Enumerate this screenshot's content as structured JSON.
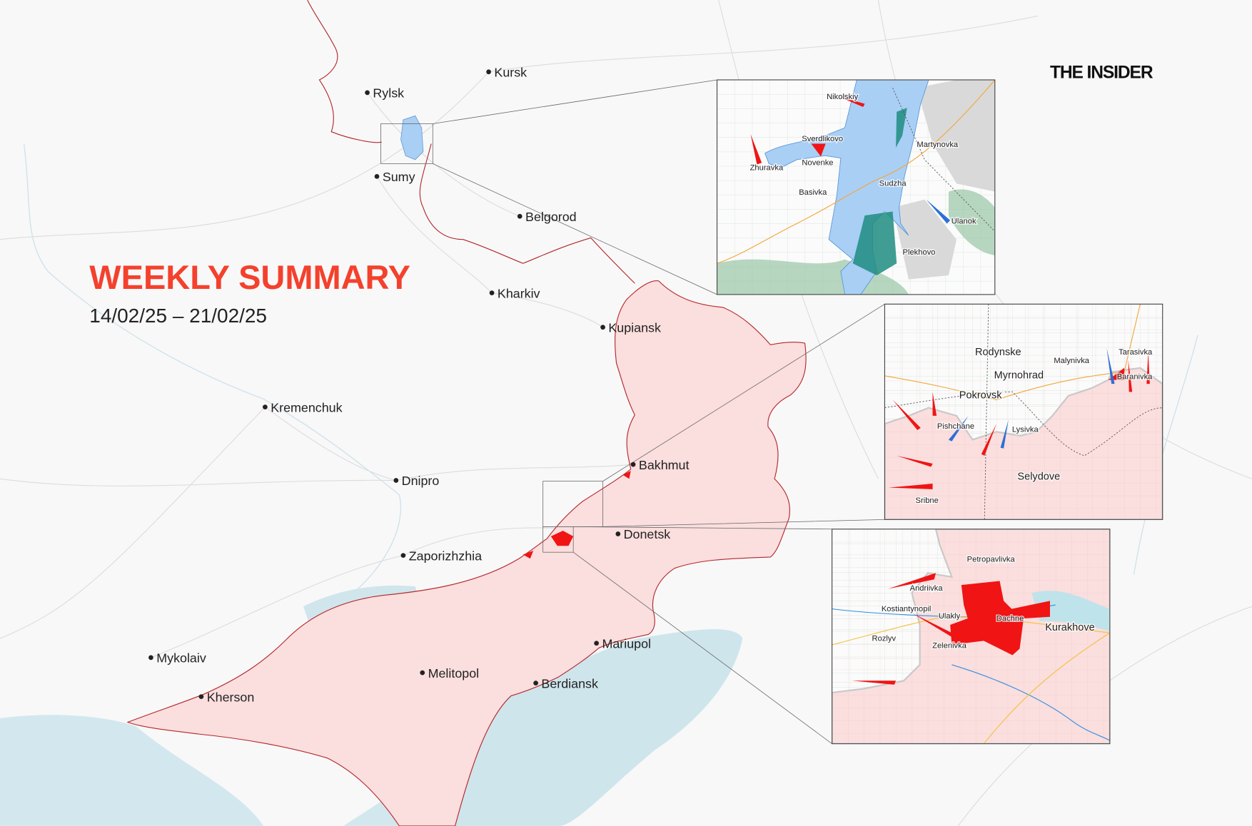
{
  "header": {
    "title": "WEEKLY SUMMARY",
    "dates": "14/02/25 – 21/02/25",
    "logo": "THE INSIDER"
  },
  "colors": {
    "title": "#f4412d",
    "occupied": "#fbdede",
    "frontline": "#b3262b",
    "ukrainian_advance": "#a9cff5",
    "russian_advance": "#f01414",
    "sea": "#cfe5ec"
  },
  "cities": [
    {
      "name": "Kursk"
    },
    {
      "name": "Rylsk"
    },
    {
      "name": "Sumy"
    },
    {
      "name": "Belgorod"
    },
    {
      "name": "Kharkiv"
    },
    {
      "name": "Kupiansk"
    },
    {
      "name": "Kremenchuk"
    },
    {
      "name": "Dnipro"
    },
    {
      "name": "Bakhmut"
    },
    {
      "name": "Donetsk"
    },
    {
      "name": "Zaporizhzhia"
    },
    {
      "name": "Mariupol"
    },
    {
      "name": "Melitopol"
    },
    {
      "name": "Berdiansk"
    },
    {
      "name": "Mykolaiv"
    },
    {
      "name": "Kherson"
    }
  ],
  "insets": [
    {
      "labels": [
        "Nikolskiy",
        "Sverdlikovo",
        "Zhuravka",
        "Novenke",
        "Basivka",
        "Martynovka",
        "Sudzha",
        "Ulanok",
        "Plekhovo"
      ]
    },
    {
      "labels": [
        "Rodynske",
        "Myrnohrad",
        "Pokrovsk",
        "Malynivka",
        "Tarasivka",
        "Baranivka",
        "Pishchane",
        "Lysivka",
        "Selydove",
        "Sribne"
      ]
    },
    {
      "labels": [
        "Petropavlivka",
        "Andriivka",
        "Kostiantynopil",
        "Ulakly",
        "Dachne",
        "Kurakhove",
        "Rozlyv",
        "Zelenivka"
      ]
    }
  ]
}
